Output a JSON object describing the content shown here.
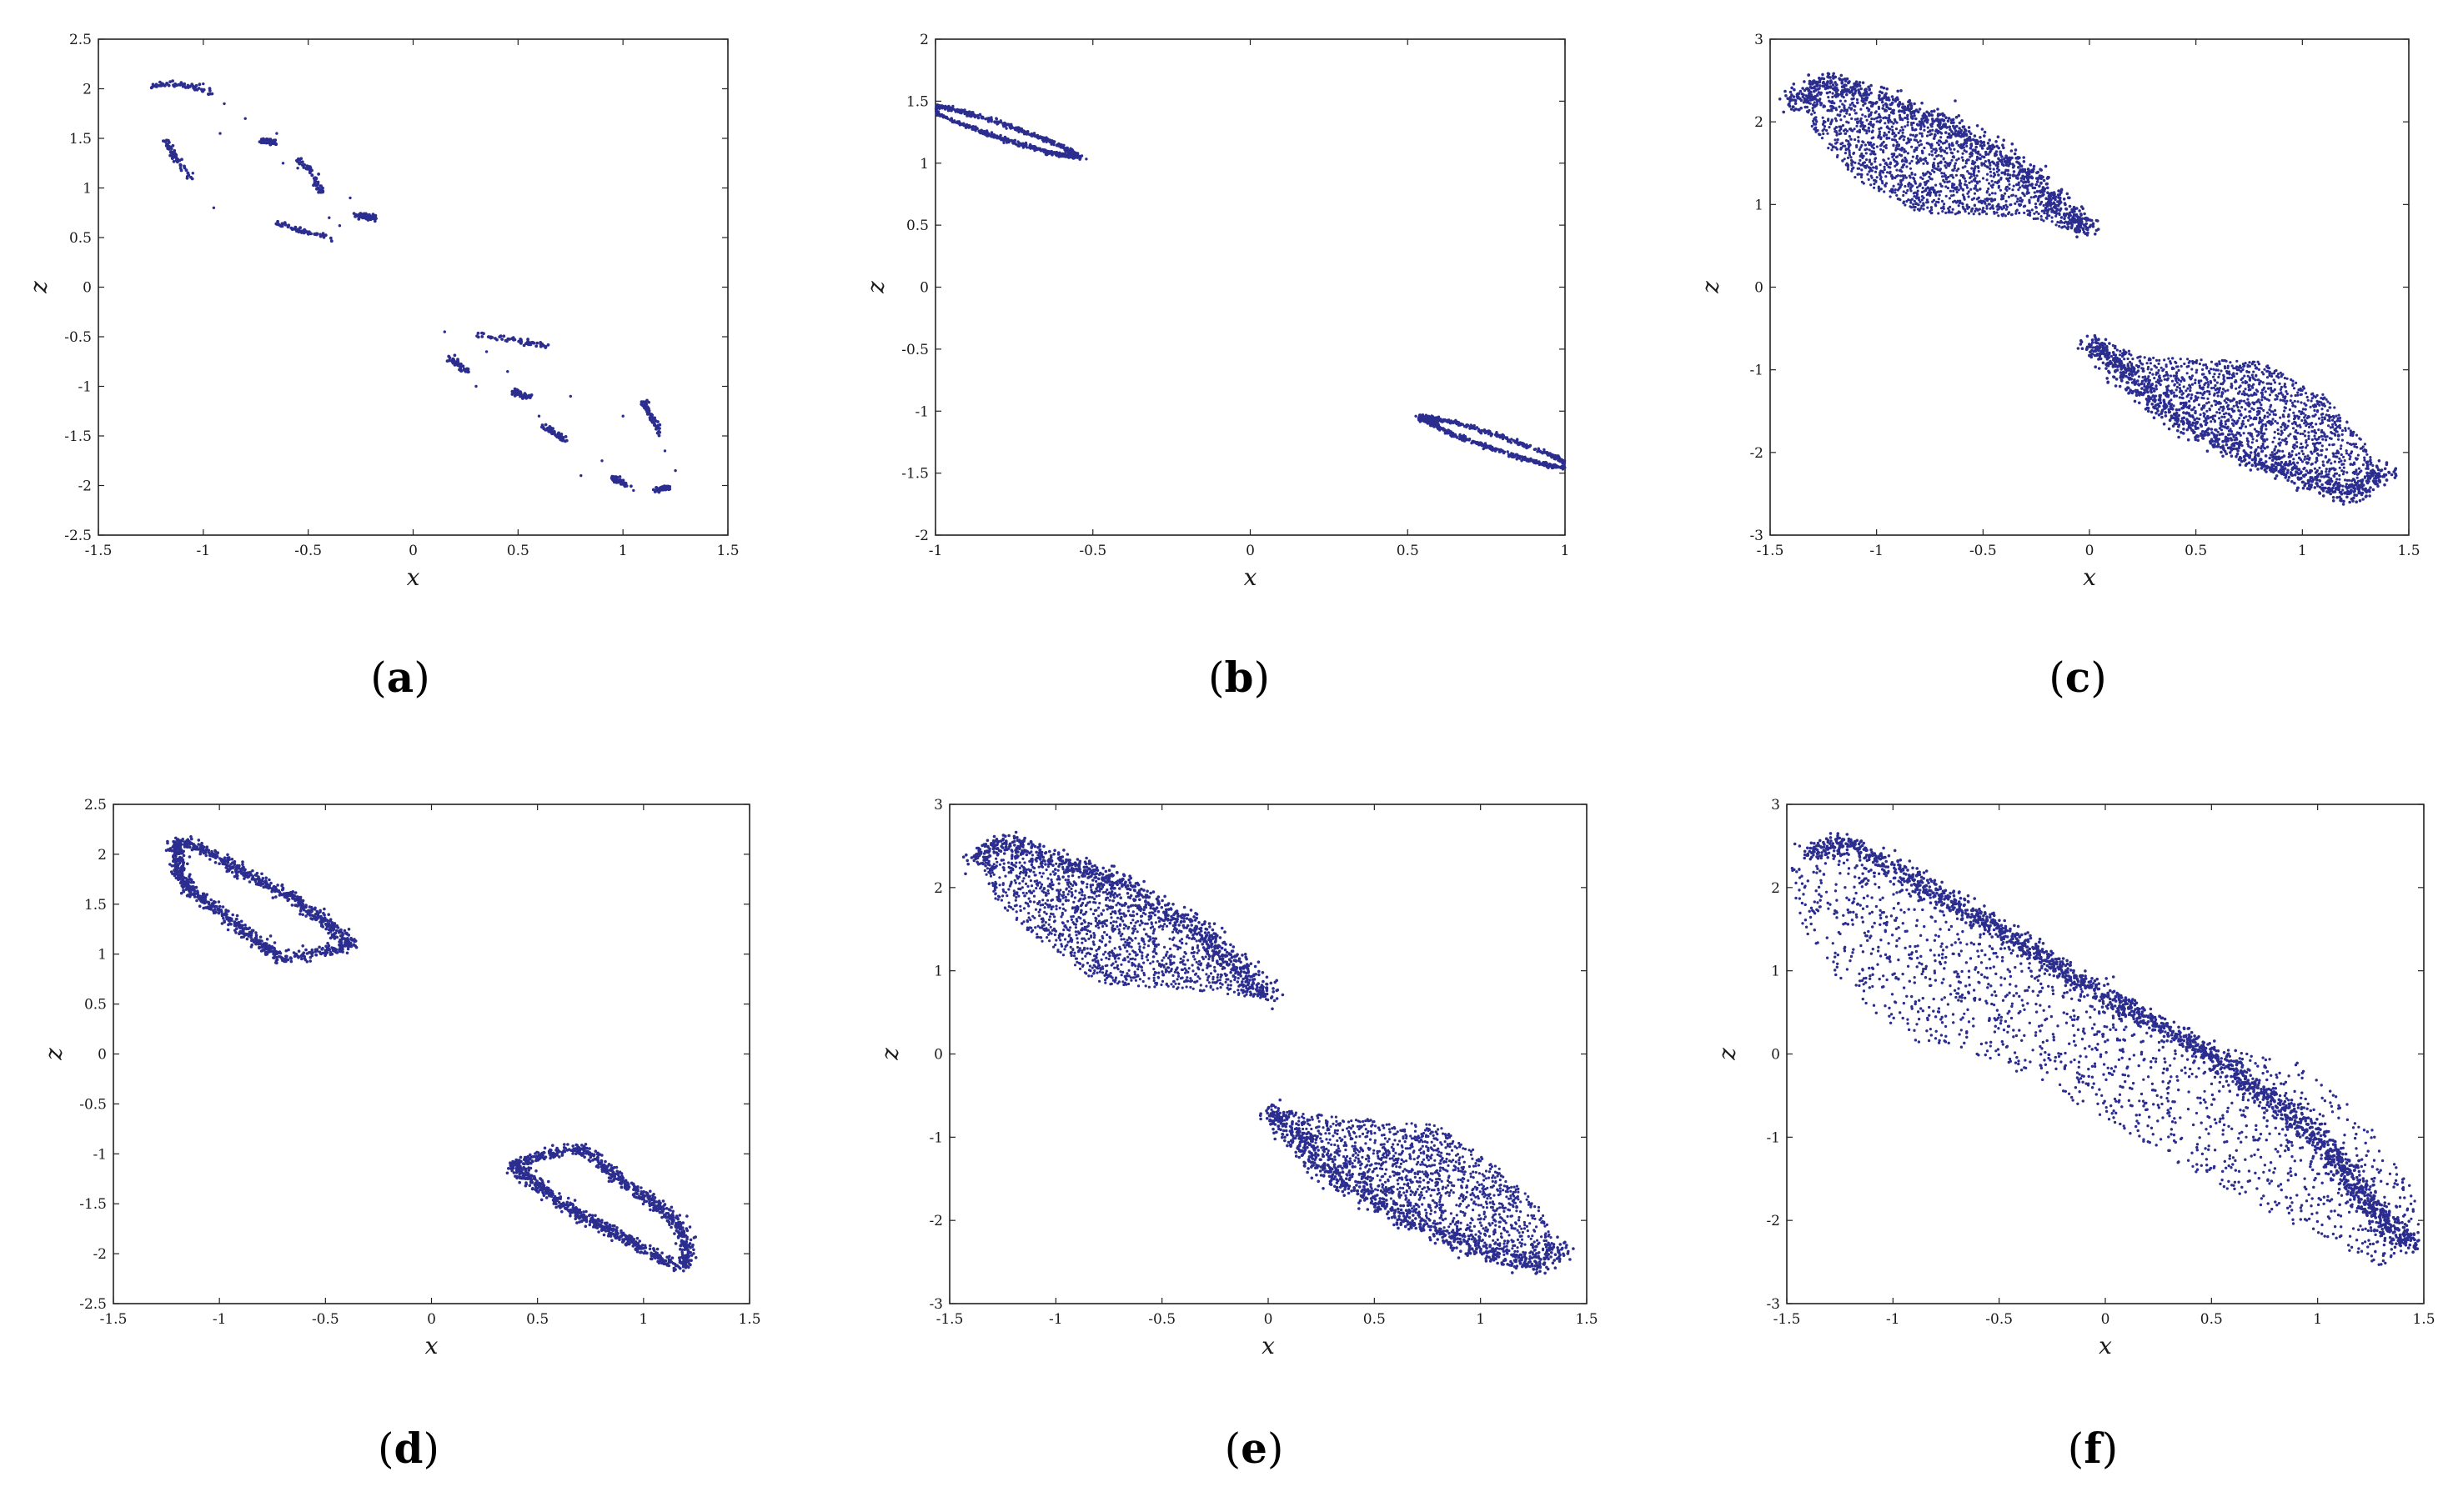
{
  "chart_data": [
    {
      "type": "scatter",
      "panel_label": "a",
      "xlabel": "x",
      "ylabel": "z",
      "xlim": [
        -1.5,
        1.5
      ],
      "ylim": [
        -2.5,
        2.5
      ],
      "xticks": [
        "-1.5",
        "-1",
        "-0.5",
        "0",
        "0.5",
        "1",
        "1.5"
      ],
      "yticks": [
        "-2.5",
        "-2",
        "-1.5",
        "-1",
        "-0.5",
        "0",
        "0.5",
        "1",
        "1.5",
        "2",
        "2.5"
      ],
      "color": "#2b2d8f",
      "segments": [
        [
          [
            -1.25,
            2.0
          ],
          [
            -1.2,
            2.05
          ],
          [
            -1.15,
            2.05
          ],
          [
            -1.05,
            2.02
          ],
          [
            -0.95,
            1.95
          ]
        ],
        [
          [
            -1.18,
            1.48
          ],
          [
            -1.15,
            1.35
          ],
          [
            -1.1,
            1.22
          ],
          [
            -1.05,
            1.1
          ]
        ],
        [
          [
            -0.72,
            1.48
          ],
          [
            -0.66,
            1.45
          ]
        ],
        [
          [
            -0.55,
            1.3
          ],
          [
            -0.48,
            1.15
          ],
          [
            -0.45,
            0.98
          ],
          [
            -0.42,
            0.95
          ]
        ],
        [
          [
            -0.65,
            0.65
          ],
          [
            -0.5,
            0.55
          ],
          [
            -0.38,
            0.48
          ]
        ],
        [
          [
            -0.28,
            0.72
          ],
          [
            -0.22,
            0.72
          ],
          [
            -0.18,
            0.7
          ]
        ],
        [
          [
            0.18,
            -0.72
          ],
          [
            0.22,
            -0.8
          ],
          [
            0.26,
            -0.85
          ]
        ],
        [
          [
            0.3,
            -0.48
          ],
          [
            0.45,
            -0.52
          ],
          [
            0.65,
            -0.6
          ]
        ],
        [
          [
            0.48,
            -1.05
          ],
          [
            0.55,
            -1.12
          ]
        ],
        [
          [
            0.62,
            -1.4
          ],
          [
            0.68,
            -1.48
          ],
          [
            0.72,
            -1.55
          ]
        ],
        [
          [
            1.1,
            -1.15
          ],
          [
            1.15,
            -1.35
          ],
          [
            1.18,
            -1.5
          ]
        ],
        [
          [
            0.95,
            -1.92
          ],
          [
            1.02,
            -2.0
          ]
        ],
        [
          [
            1.15,
            -2.05
          ],
          [
            1.22,
            -2.02
          ]
        ]
      ],
      "points": [
        [
          -1.0,
          2.05
        ],
        [
          -0.9,
          1.85
        ],
        [
          -0.8,
          1.7
        ],
        [
          -0.65,
          1.55
        ],
        [
          -0.92,
          1.55
        ],
        [
          -1.05,
          1.15
        ],
        [
          -0.95,
          0.8
        ],
        [
          -0.4,
          0.7
        ],
        [
          -0.35,
          0.62
        ],
        [
          -0.55,
          1.2
        ],
        [
          -0.62,
          1.25
        ],
        [
          -0.3,
          0.9
        ],
        [
          0.15,
          -0.45
        ],
        [
          0.3,
          -1.0
        ],
        [
          0.45,
          -0.85
        ],
        [
          0.8,
          -1.9
        ],
        [
          0.9,
          -1.75
        ],
        [
          1.05,
          -2.05
        ],
        [
          1.25,
          -1.85
        ],
        [
          1.2,
          -1.65
        ],
        [
          0.6,
          -1.3
        ],
        [
          0.35,
          -0.65
        ],
        [
          0.75,
          -1.1
        ],
        [
          1.0,
          -1.3
        ]
      ]
    },
    {
      "type": "scatter",
      "panel_label": "b",
      "xlabel": "x",
      "ylabel": "z",
      "xlim": [
        -1,
        1
      ],
      "ylim": [
        -2,
        2
      ],
      "xticks": [
        "-1",
        "-0.5",
        "0",
        "0.5",
        "1"
      ],
      "yticks": [
        "-2",
        "-1.5",
        "-1",
        "-0.5",
        "0",
        "0.5",
        "1",
        "1.5",
        "2"
      ],
      "color": "#2b2d8f",
      "ellipses": [
        {
          "cx": -0.79,
          "cz": 1.26,
          "rx": 0.255,
          "rz": 0.055,
          "angle_deg": -23
        },
        {
          "cx": 0.79,
          "cz": -1.26,
          "rx": 0.255,
          "rz": 0.055,
          "angle_deg": -23
        }
      ]
    },
    {
      "type": "scatter",
      "panel_label": "c",
      "xlabel": "x",
      "ylabel": "z",
      "xlim": [
        -1.5,
        1.5
      ],
      "ylim": [
        -3,
        3
      ],
      "xticks": [
        "-1.5",
        "-1",
        "-0.5",
        "0",
        "0.5",
        "1",
        "1.5"
      ],
      "yticks": [
        "-3",
        "-2",
        "-1",
        "0",
        "1",
        "2",
        "3"
      ],
      "color": "#2b2d8f",
      "clouds": [
        {
          "outline": [
            [
              -1.35,
              2.3
            ],
            [
              -1.2,
              2.5
            ],
            [
              -1.05,
              2.3
            ],
            [
              -0.7,
              1.9
            ],
            [
              -0.3,
              1.3
            ],
            [
              0.0,
              0.62
            ],
            [
              -0.3,
              0.85
            ],
            [
              -0.8,
              0.9
            ],
            [
              -1.1,
              1.3
            ],
            [
              -1.3,
              1.9
            ]
          ],
          "dense_edge": [
            [
              -1.4,
              2.2
            ],
            [
              -1.25,
              2.5
            ],
            [
              -1.1,
              2.4
            ],
            [
              -0.7,
              2.0
            ],
            [
              -0.3,
              1.4
            ],
            [
              0.0,
              0.65
            ]
          ],
          "count": 1400
        },
        {
          "outline": [
            [
              1.35,
              -2.3
            ],
            [
              1.2,
              -2.5
            ],
            [
              1.05,
              -2.3
            ],
            [
              0.7,
              -1.9
            ],
            [
              0.3,
              -1.3
            ],
            [
              0.0,
              -0.62
            ],
            [
              0.3,
              -0.85
            ],
            [
              0.8,
              -0.9
            ],
            [
              1.1,
              -1.3
            ],
            [
              1.3,
              -1.9
            ]
          ],
          "dense_edge": [
            [
              1.4,
              -2.2
            ],
            [
              1.25,
              -2.5
            ],
            [
              1.1,
              -2.4
            ],
            [
              0.7,
              -2.0
            ],
            [
              0.3,
              -1.4
            ],
            [
              0.0,
              -0.65
            ]
          ],
          "count": 1400
        }
      ]
    },
    {
      "type": "scatter",
      "panel_label": "d",
      "xlabel": "x",
      "ylabel": "z",
      "xlim": [
        -1.5,
        1.5
      ],
      "ylim": [
        -2.5,
        2.5
      ],
      "xticks": [
        "-1.5",
        "-1",
        "-0.5",
        "0",
        "0.5",
        "1",
        "1.5"
      ],
      "yticks": [
        "-2.5",
        "-2",
        "-1.5",
        "-1",
        "-0.5",
        "0",
        "0.5",
        "1",
        "1.5",
        "2",
        "2.5"
      ],
      "color": "#2b2d8f",
      "loops": [
        [
          [
            -1.2,
            2.12
          ],
          [
            -1.1,
            2.08
          ],
          [
            -1.0,
            1.95
          ],
          [
            -0.85,
            1.78
          ],
          [
            -0.65,
            1.55
          ],
          [
            -0.5,
            1.32
          ],
          [
            -0.38,
            1.1
          ],
          [
            -0.55,
            1.0
          ],
          [
            -0.7,
            0.95
          ],
          [
            -0.8,
            1.1
          ],
          [
            -0.95,
            1.35
          ],
          [
            -1.12,
            1.6
          ],
          [
            -1.2,
            1.85
          ],
          [
            -1.2,
            2.12
          ]
        ],
        [
          [
            1.2,
            -2.12
          ],
          [
            1.1,
            -2.08
          ],
          [
            1.0,
            -1.95
          ],
          [
            0.85,
            -1.78
          ],
          [
            0.65,
            -1.55
          ],
          [
            0.5,
            -1.32
          ],
          [
            0.38,
            -1.1
          ],
          [
            0.55,
            -1.0
          ],
          [
            0.7,
            -0.95
          ],
          [
            0.8,
            -1.1
          ],
          [
            0.95,
            -1.35
          ],
          [
            1.12,
            -1.6
          ],
          [
            1.2,
            -1.85
          ],
          [
            1.2,
            -2.12
          ]
        ]
      ]
    },
    {
      "type": "scatter",
      "panel_label": "e",
      "xlabel": "x",
      "ylabel": "z",
      "xlim": [
        -1.5,
        1.5
      ],
      "ylim": [
        -3,
        3
      ],
      "xticks": [
        "-1.5",
        "-1",
        "-0.5",
        "0",
        "0.5",
        "1",
        "1.5"
      ],
      "yticks": [
        "-3",
        "-2",
        "-1",
        "0",
        "1",
        "2",
        "3"
      ],
      "color": "#2b2d8f",
      "clouds": [
        {
          "outline": [
            [
              -1.35,
              2.3
            ],
            [
              -1.2,
              2.55
            ],
            [
              -1.05,
              2.35
            ],
            [
              -0.7,
              1.95
            ],
            [
              -0.3,
              1.35
            ],
            [
              0.0,
              0.65
            ],
            [
              -0.3,
              0.75
            ],
            [
              -0.8,
              0.85
            ],
            [
              -1.1,
              1.4
            ],
            [
              -1.3,
              1.9
            ]
          ],
          "dense_edge": [
            [
              -1.4,
              2.3
            ],
            [
              -1.25,
              2.55
            ],
            [
              -1.1,
              2.45
            ],
            [
              -0.7,
              2.05
            ],
            [
              -0.3,
              1.45
            ],
            [
              0.0,
              0.68
            ]
          ],
          "count": 1300
        },
        {
          "outline": [
            [
              1.35,
              -2.3
            ],
            [
              1.2,
              -2.55
            ],
            [
              1.05,
              -2.35
            ],
            [
              0.7,
              -1.95
            ],
            [
              0.3,
              -1.35
            ],
            [
              0.0,
              -0.65
            ],
            [
              0.3,
              -0.75
            ],
            [
              0.8,
              -0.85
            ],
            [
              1.1,
              -1.4
            ],
            [
              1.3,
              -1.9
            ]
          ],
          "dense_edge": [
            [
              1.4,
              -2.3
            ],
            [
              1.25,
              -2.55
            ],
            [
              1.1,
              -2.45
            ],
            [
              0.7,
              -2.05
            ],
            [
              0.3,
              -1.45
            ],
            [
              0.0,
              -0.68
            ]
          ],
          "count": 1300
        }
      ]
    },
    {
      "type": "scatter",
      "panel_label": "f",
      "xlabel": "x",
      "ylabel": "z",
      "xlim": [
        -1.5,
        1.5
      ],
      "ylim": [
        -3,
        3
      ],
      "xticks": [
        "-1.5",
        "-1",
        "-0.5",
        "0",
        "0.5",
        "1",
        "1.5"
      ],
      "yticks": [
        "-3",
        "-2",
        "-1",
        "0",
        "1",
        "2",
        "3"
      ],
      "color": "#2b2d8f",
      "merged_cloud": {
        "outline": [
          [
            -1.5,
            2.3
          ],
          [
            -1.3,
            2.55
          ],
          [
            -1.0,
            2.2
          ],
          [
            -0.4,
            1.4
          ],
          [
            0.2,
            0.5
          ],
          [
            0.5,
            0.1
          ],
          [
            0.9,
            -0.1
          ],
          [
            1.2,
            -0.7
          ],
          [
            1.45,
            -1.6
          ],
          [
            1.5,
            -2.2
          ],
          [
            1.3,
            -2.55
          ],
          [
            1.0,
            -2.2
          ],
          [
            0.4,
            -1.4
          ],
          [
            -0.2,
            -0.5
          ],
          [
            -0.5,
            -0.1
          ],
          [
            -0.9,
            0.1
          ],
          [
            -1.2,
            0.7
          ],
          [
            -1.45,
            1.6
          ]
        ],
        "dense_edge": [
          [
            -1.4,
            2.4
          ],
          [
            -1.25,
            2.55
          ],
          [
            -1.0,
            2.25
          ],
          [
            -0.5,
            1.5
          ],
          [
            0.0,
            0.7
          ],
          [
            0.5,
            0.0
          ],
          [
            1.0,
            -1.0
          ],
          [
            1.3,
            -2.0
          ],
          [
            1.45,
            -2.3
          ]
        ],
        "count": 3200
      }
    }
  ]
}
